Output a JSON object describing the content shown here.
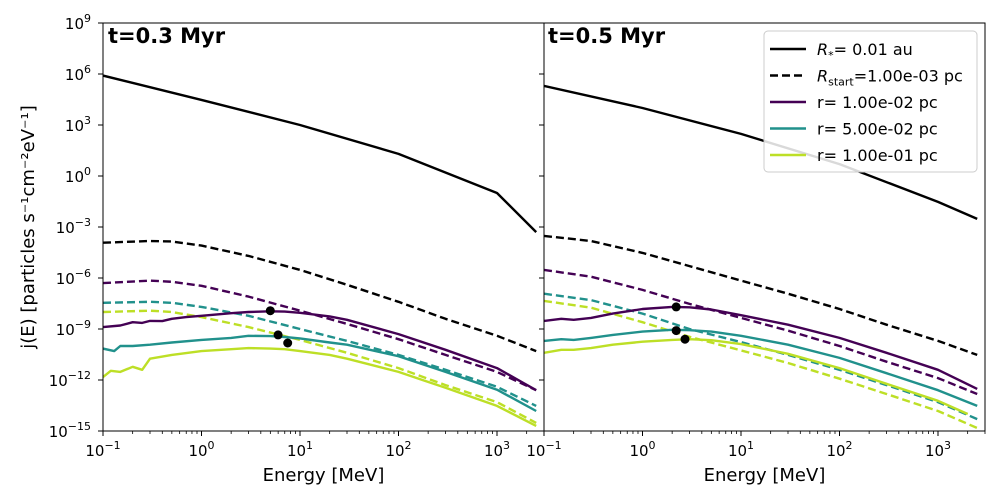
{
  "chart_data": [
    {
      "type": "line",
      "panel_label": "t=0.3 Myr",
      "xlabel": "Energy [MeV]",
      "ylabel": "j(E) [particles s⁻¹cm⁻²eV⁻¹]",
      "xscale": "log",
      "yscale": "log",
      "xlim": [
        0.1,
        3000
      ],
      "ylim": [
        1e-15,
        1000000000.0
      ],
      "x_ticks": [
        {
          "v": 0.1,
          "b": "10",
          "e": "−1"
        },
        {
          "v": 1,
          "b": "10",
          "e": "0"
        },
        {
          "v": 10,
          "b": "10",
          "e": "1"
        },
        {
          "v": 100,
          "b": "10",
          "e": "2"
        },
        {
          "v": 1000,
          "b": "10",
          "e": "3"
        }
      ],
      "y_ticks": [
        {
          "v": 1e-15,
          "b": "10",
          "e": "−15"
        },
        {
          "v": 1e-12,
          "b": "10",
          "e": "−12"
        },
        {
          "v": 1e-09,
          "b": "10",
          "e": "−9"
        },
        {
          "v": 1e-06,
          "b": "10",
          "e": "−6"
        },
        {
          "v": 0.001,
          "b": "10",
          "e": "−3"
        },
        {
          "v": 1,
          "b": "10",
          "e": "0"
        },
        {
          "v": 1000.0,
          "b": "10",
          "e": "3"
        },
        {
          "v": 1000000.0,
          "b": "10",
          "e": "6"
        },
        {
          "v": 1000000000.0,
          "b": "10",
          "e": "9"
        }
      ],
      "series": [
        {
          "name": "R*= 0.01 au",
          "color": "#000000",
          "dash": "solid",
          "x": [
            0.1,
            1,
            10,
            100,
            1000,
            2500
          ],
          "y": [
            800000.0,
            30000.0,
            1000.0,
            20.0,
            0.1,
            0.0005
          ]
        },
        {
          "name": "Rstart=1.00e-03 pc",
          "color": "#000000",
          "dash": "dashed",
          "x": [
            0.1,
            0.3,
            0.5,
            1,
            3,
            10,
            30,
            100,
            300,
            1000,
            2500
          ],
          "y": [
            0.00012,
            0.00015,
            0.00014,
            8e-05,
            2e-05,
            3e-06,
            4e-07,
            4e-08,
            4e-09,
            4e-10,
            5e-11
          ]
        },
        {
          "name": "r= 1.00e-02 pc",
          "color": "#440154",
          "dash": "dashed",
          "x": [
            0.1,
            0.3,
            0.5,
            1,
            3,
            10,
            30,
            100,
            300,
            1000,
            2500
          ],
          "y": [
            5e-07,
            7e-07,
            6e-07,
            3.5e-07,
            8e-08,
            1.2e-08,
            2e-09,
            2.5e-10,
            3e-11,
            3e-12,
            2.5e-13
          ]
        },
        {
          "name": "r= 5.00e-02 pc",
          "color": "#21918c",
          "dash": "dashed",
          "x": [
            0.1,
            0.3,
            0.5,
            1,
            3,
            10,
            30,
            100,
            300,
            1000,
            2500
          ],
          "y": [
            3.5e-08,
            4e-08,
            3.5e-08,
            2e-08,
            6e-09,
            1e-09,
            2e-10,
            3e-11,
            4e-12,
            4e-13,
            3e-14
          ]
        },
        {
          "name": "r= 1.00e-01 pc",
          "color": "#bddf26",
          "dash": "dashed",
          "x": [
            0.1,
            0.3,
            0.5,
            1,
            3,
            10,
            30,
            100,
            300,
            1000,
            2500
          ],
          "y": [
            1e-08,
            1.2e-08,
            1e-08,
            5e-09,
            1.3e-09,
            2.3e-10,
            4e-11,
            5e-12,
            5e-13,
            5e-14,
            3e-15
          ]
        },
        {
          "name": "r= 1.00e-02 pc",
          "color": "#440154",
          "dash": "solid",
          "x": [
            0.1,
            0.15,
            0.2,
            0.25,
            0.3,
            0.4,
            0.5,
            0.7,
            1,
            2,
            3,
            5,
            7,
            10,
            20,
            30,
            100,
            300,
            1000,
            2500
          ],
          "y": [
            1.3e-09,
            1.6e-09,
            2.5e-09,
            2.3e-09,
            3e-09,
            2.9e-09,
            4e-09,
            5e-09,
            6e-09,
            8.5e-09,
            1e-08,
            1.1e-08,
            1.05e-08,
            9e-09,
            5.5e-09,
            3.5e-09,
            5e-10,
            6e-11,
            5e-12,
            2.5e-13
          ]
        },
        {
          "name": "r= 5.00e-02 pc",
          "color": "#21918c",
          "dash": "solid",
          "x": [
            0.1,
            0.13,
            0.15,
            0.2,
            0.3,
            0.5,
            1,
            2,
            3,
            5,
            7,
            10,
            20,
            30,
            100,
            300,
            1000,
            2500
          ],
          "y": [
            7e-11,
            5e-11,
            1e-10,
            1e-10,
            1.2e-10,
            1.6e-10,
            2.3e-10,
            3e-10,
            4e-10,
            3.8e-10,
            3.4e-10,
            2.8e-10,
            1.6e-10,
            1.2e-10,
            2.5e-11,
            3e-12,
            2.7e-13,
            1.5e-14
          ]
        },
        {
          "name": "r= 1.00e-01 pc",
          "color": "#bddf26",
          "dash": "solid",
          "x": [
            0.1,
            0.12,
            0.15,
            0.2,
            0.25,
            0.3,
            0.5,
            1,
            2,
            3,
            5,
            7,
            10,
            20,
            30,
            100,
            300,
            1000,
            2500
          ],
          "y": [
            1.5e-12,
            3.5e-12,
            3e-12,
            6e-12,
            4e-12,
            1.8e-11,
            3e-11,
            5e-11,
            6.5e-11,
            7.5e-11,
            7e-11,
            6.5e-11,
            5e-11,
            3e-11,
            1.8e-11,
            3e-12,
            3.5e-13,
            3e-14,
            2e-15
          ]
        }
      ],
      "markers": [
        {
          "x": 5,
          "y": 1.2e-08
        },
        {
          "x": 6,
          "y": 4.5e-10
        },
        {
          "x": 7.5,
          "y": 1.5e-10
        }
      ]
    },
    {
      "type": "line",
      "panel_label": "t=0.5 Myr",
      "xlabel": "Energy [MeV]",
      "xscale": "log",
      "yscale": "log",
      "xlim": [
        0.1,
        3000
      ],
      "ylim": [
        1e-15,
        1000000000.0
      ],
      "x_ticks": [
        {
          "v": 0.1,
          "b": "10",
          "e": "−1"
        },
        {
          "v": 1,
          "b": "10",
          "e": "0"
        },
        {
          "v": 10,
          "b": "10",
          "e": "1"
        },
        {
          "v": 100,
          "b": "10",
          "e": "2"
        },
        {
          "v": 1000,
          "b": "10",
          "e": "3"
        }
      ],
      "series": [
        {
          "name": "R*= 0.01 au",
          "color": "#000000",
          "dash": "solid",
          "x": [
            0.1,
            1,
            10,
            100,
            1000,
            2500
          ],
          "y": [
            200000.0,
            10000.0,
            300.0,
            5,
            0.03,
            0.003
          ]
        },
        {
          "name": "Rstart=1.00e-03 pc",
          "color": "#000000",
          "dash": "dashed",
          "x": [
            0.1,
            0.3,
            1,
            3,
            10,
            30,
            100,
            300,
            1000,
            2500
          ],
          "y": [
            0.0003,
            0.00015,
            3e-05,
            5e-06,
            7e-07,
            1.2e-07,
            1.5e-08,
            1.8e-09,
            2e-10,
            3e-11
          ]
        },
        {
          "name": "r= 1.00e-02 pc",
          "color": "#440154",
          "dash": "dashed",
          "x": [
            0.1,
            0.3,
            1,
            3,
            10,
            30,
            100,
            300,
            1000,
            2500
          ],
          "y": [
            3e-06,
            1.2e-06,
            2e-07,
            3e-08,
            4.5e-09,
            8e-10,
            1e-10,
            1.2e-11,
            1.3e-12,
            1.5e-13
          ]
        },
        {
          "name": "r= 5.00e-02 pc",
          "color": "#21918c",
          "dash": "dashed",
          "x": [
            0.1,
            0.3,
            1,
            3,
            10,
            30,
            100,
            300,
            1000,
            2500
          ],
          "y": [
            1.2e-07,
            5e-08,
            8e-09,
            1e-09,
            1.7e-10,
            3e-11,
            4e-12,
            5e-13,
            5e-14,
            5e-15
          ]
        },
        {
          "name": "r= 1.00e-01 pc",
          "color": "#bddf26",
          "dash": "dashed",
          "x": [
            0.1,
            0.3,
            1,
            3,
            10,
            30,
            100,
            300,
            1000,
            2500
          ],
          "y": [
            4.5e-08,
            1.8e-08,
            2.5e-09,
            3.5e-10,
            5.5e-11,
            1e-11,
            1.2e-12,
            1.5e-13,
            1.5e-14,
            1.5e-15
          ]
        },
        {
          "name": "r= 1.00e-02 pc",
          "color": "#440154",
          "dash": "solid",
          "x": [
            0.1,
            0.15,
            0.2,
            0.3,
            0.5,
            1,
            2,
            3,
            5,
            10,
            30,
            100,
            300,
            1000,
            2500
          ],
          "y": [
            3e-09,
            4e-09,
            3.5e-09,
            4.5e-09,
            8e-09,
            1.5e-08,
            2e-08,
            1.9e-08,
            1.4e-08,
            6.5e-09,
            1.8e-09,
            3e-10,
            4e-11,
            4e-12,
            3e-13
          ]
        },
        {
          "name": "r= 5.00e-02 pc",
          "color": "#21918c",
          "dash": "solid",
          "x": [
            0.1,
            0.15,
            0.2,
            0.3,
            0.5,
            1,
            2,
            3,
            5,
            10,
            30,
            100,
            300,
            1000,
            2500
          ],
          "y": [
            2e-10,
            2.5e-10,
            2.3e-10,
            3e-10,
            4.5e-10,
            7e-10,
            9e-10,
            8.5e-10,
            7e-10,
            4e-10,
            1.2e-10,
            2e-11,
            2.5e-12,
            2.5e-13,
            3e-14
          ]
        },
        {
          "name": "r= 1.00e-01 pc",
          "color": "#bddf26",
          "dash": "solid",
          "x": [
            0.1,
            0.15,
            0.2,
            0.3,
            0.5,
            1,
            2,
            3,
            5,
            10,
            30,
            100,
            300,
            1000,
            2000
          ],
          "y": [
            4e-11,
            6e-11,
            6e-11,
            7.5e-11,
            1.2e-10,
            1.8e-10,
            2.3e-10,
            2.5e-10,
            2.2e-10,
            1.3e-10,
            3.5e-11,
            5e-12,
            6e-13,
            6e-14,
            1e-14
          ]
        }
      ],
      "markers": [
        {
          "x": 2.2,
          "y": 2e-08
        },
        {
          "x": 2.2,
          "y": 8e-10
        },
        {
          "x": 2.7,
          "y": 2.5e-10
        }
      ]
    }
  ],
  "legend": {
    "items": [
      {
        "label_main": "R",
        "label_sub": "*",
        "label_rest": "= 0.01 au",
        "color": "#000000",
        "dash": "solid"
      },
      {
        "label_main": "R",
        "label_sub": "start",
        "label_rest": "=1.00e-03 pc",
        "color": "#000000",
        "dash": "dashed"
      },
      {
        "label_main": "r= 1.00e-02 pc",
        "label_sub": "",
        "label_rest": "",
        "color": "#440154",
        "dash": "solid"
      },
      {
        "label_main": "r= 5.00e-02 pc",
        "label_sub": "",
        "label_rest": "",
        "color": "#21918c",
        "dash": "solid"
      },
      {
        "label_main": "r= 1.00e-01 pc",
        "label_sub": "",
        "label_rest": "",
        "color": "#bddf26",
        "dash": "solid"
      }
    ]
  }
}
